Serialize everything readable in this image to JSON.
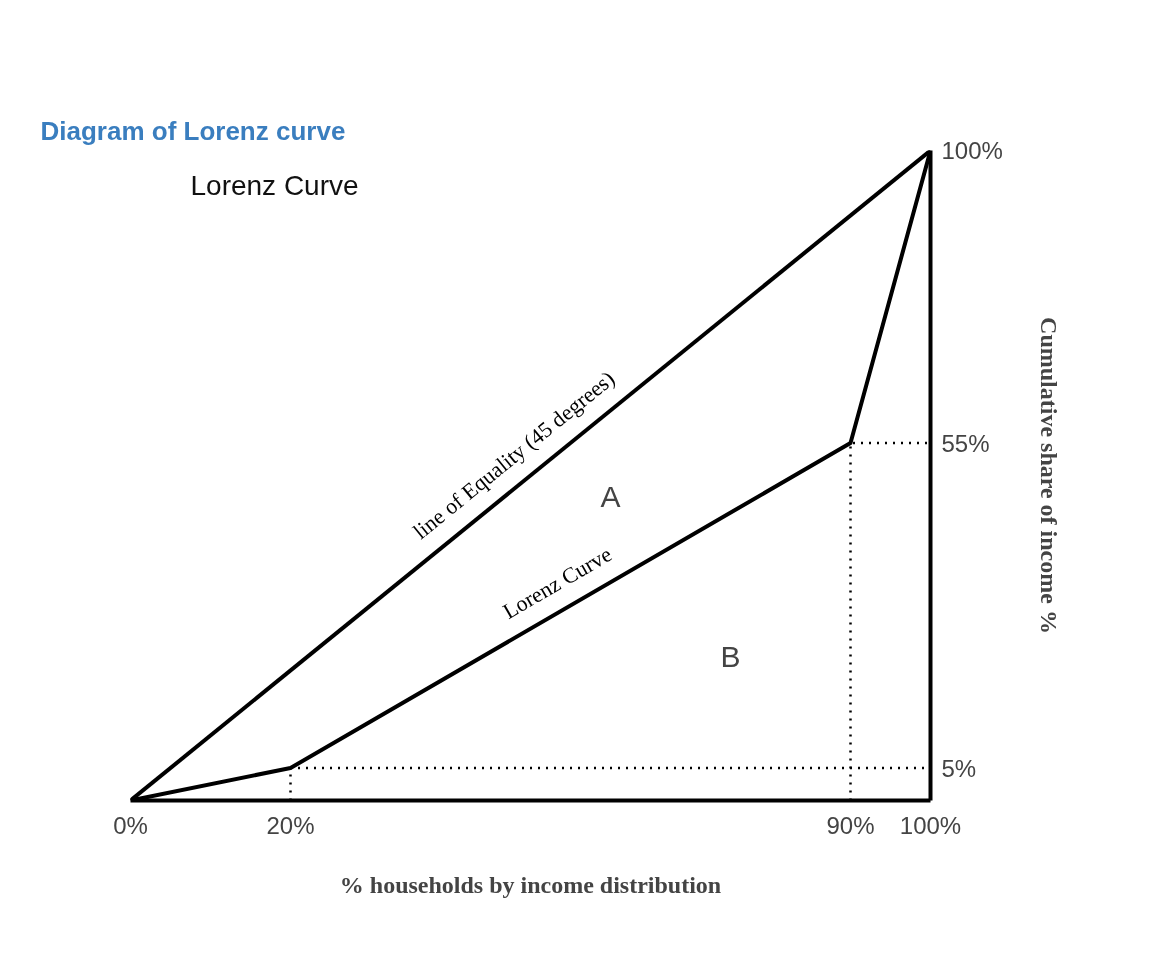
{
  "chart_data": {
    "type": "line",
    "title": "Diagram of Lorenz curve",
    "subtitle": "Lorenz Curve",
    "xlabel": "% households by income distribution",
    "ylabel": "Cumulative share of income %",
    "xlim": [
      0,
      100
    ],
    "ylim": [
      0,
      100
    ],
    "xticks": [
      {
        "value": 0,
        "label": "0%"
      },
      {
        "value": 20,
        "label": "20%"
      },
      {
        "value": 90,
        "label": "90%"
      },
      {
        "value": 100,
        "label": "100%"
      }
    ],
    "yticks": [
      {
        "value": 5,
        "label": "5%"
      },
      {
        "value": 55,
        "label": "55%"
      },
      {
        "value": 100,
        "label": "100%"
      }
    ],
    "grid": false,
    "marker": "none",
    "series": [
      {
        "name": "line of Equality (45 degrees)",
        "color": "#000000",
        "x": [
          0,
          100
        ],
        "values": [
          0,
          100
        ]
      },
      {
        "name": "Lorenz Curve",
        "color": "#000000",
        "x": [
          0,
          20,
          90,
          100
        ],
        "values": [
          0,
          5,
          55,
          100
        ]
      },
      {
        "color": "#000000",
        "line_style": "dotted",
        "x": [
          20,
          20,
          100
        ],
        "values": [
          0,
          5,
          5
        ]
      },
      {
        "color": "#000000",
        "line_style": "dotted",
        "x": [
          90,
          90,
          100
        ],
        "values": [
          0,
          55,
          55
        ]
      }
    ],
    "annotations": [
      "A",
      "B"
    ]
  }
}
